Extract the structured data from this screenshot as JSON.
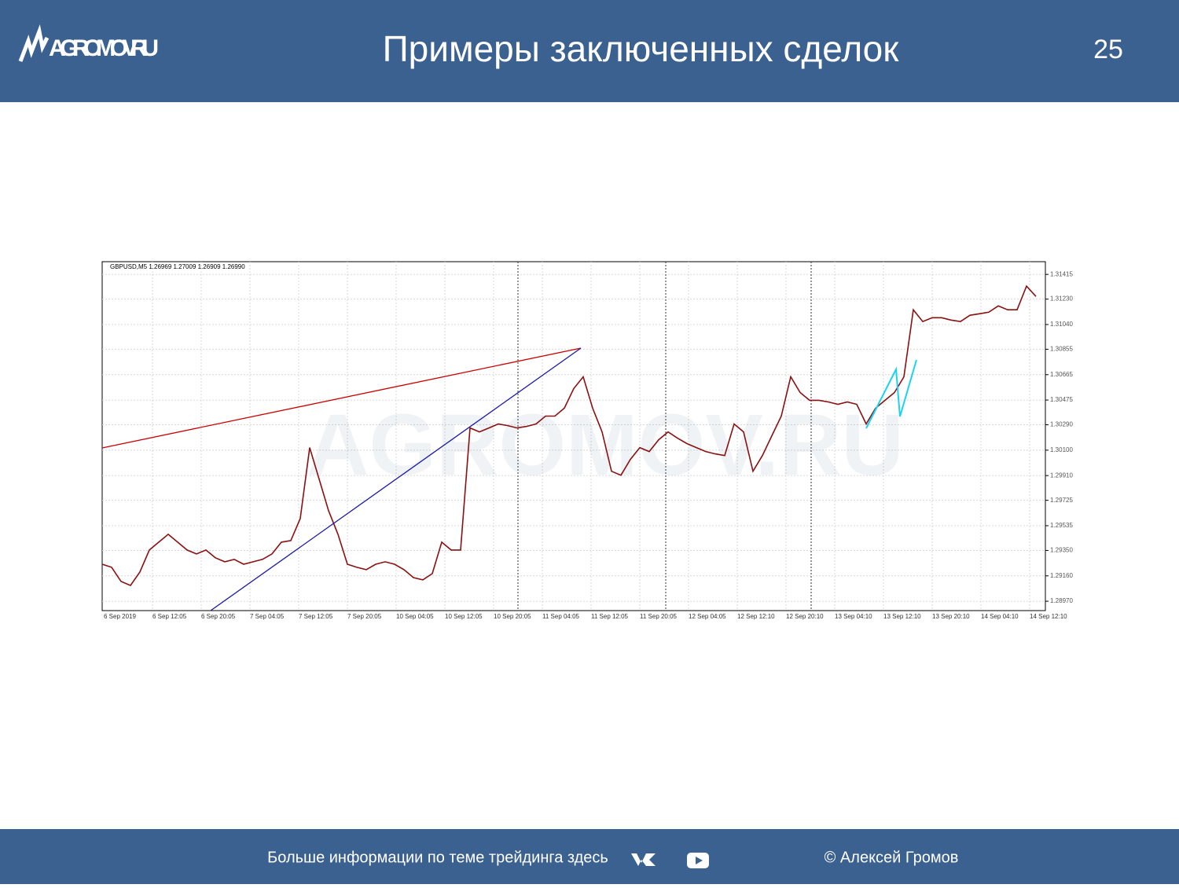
{
  "header": {
    "logo": "AGROMOV.RU",
    "title": "Примеры заключенных сделок",
    "page_number": "25"
  },
  "chart_data": {
    "type": "line",
    "legend_text": "GBPUSD,M5  1.26969 1.27009 1.26909 1.26990",
    "watermark": "AGROMOV.RU",
    "color": "#8b1010",
    "values": [
      1.29247,
      1.29224,
      1.29118,
      1.29088,
      1.29189,
      1.29353,
      1.29412,
      1.29471,
      1.29412,
      1.29353,
      1.29324,
      1.29353,
      1.29295,
      1.29265,
      1.29283,
      1.29247,
      1.29265,
      1.29283,
      1.29324,
      1.29412,
      1.29424,
      1.29589,
      1.30119,
      1.29884,
      1.29648,
      1.29471,
      1.29247,
      1.29224,
      1.29206,
      1.29247,
      1.29265,
      1.29247,
      1.29206,
      1.29147,
      1.2913,
      1.29177,
      1.29412,
      1.29353,
      1.29353,
      1.30266,
      1.30237,
      1.30266,
      1.30296,
      1.30284,
      1.30266,
      1.30278,
      1.30296,
      1.30355,
      1.30355,
      1.30414,
      1.30561,
      1.30649,
      1.30414,
      1.30237,
      1.29942,
      1.29913,
      1.30031,
      1.30119,
      1.3009,
      1.30178,
      1.30237,
      1.3019,
      1.30149,
      1.30119,
      1.3009,
      1.30072,
      1.3006,
      1.30296,
      1.30237,
      1.29942,
      1.3006,
      1.30208,
      1.30355,
      1.30649,
      1.30531,
      1.30473,
      1.30473,
      1.30461,
      1.30443,
      1.30461,
      1.30443,
      1.30296,
      1.30414,
      1.30473,
      1.30531,
      1.30649,
      1.3115,
      1.31062,
      1.31091,
      1.31091,
      1.31073,
      1.31062,
      1.31109,
      1.3112,
      1.31132,
      1.31179,
      1.3115,
      1.3115,
      1.31327,
      1.3125
    ],
    "ylim": [
      1.289,
      1.3151
    ],
    "yticks": [
      {
        "value": 1.31415,
        "label": "1.31415"
      },
      {
        "value": 1.3123,
        "label": "1.31230"
      },
      {
        "value": 1.3104,
        "label": "1.31040"
      },
      {
        "value": 1.30855,
        "label": "1.30855"
      },
      {
        "value": 1.30665,
        "label": "1.30665"
      },
      {
        "value": 1.30475,
        "label": "1.30475"
      },
      {
        "value": 1.3029,
        "label": "1.30290"
      },
      {
        "value": 1.301,
        "label": "1.30100"
      },
      {
        "value": 1.2991,
        "label": "1.29910"
      },
      {
        "value": 1.29725,
        "label": "1.29725"
      },
      {
        "value": 1.29535,
        "label": "1.29535"
      },
      {
        "value": 1.2935,
        "label": "1.29350"
      },
      {
        "value": 1.2916,
        "label": "1.29160"
      },
      {
        "value": 1.2897,
        "label": "1.28970"
      }
    ],
    "time_labels": [
      "6 Sep 2019",
      "6 Sep 12:05",
      "6 Sep 20:05",
      "7 Sep 04:05",
      "7 Sep 12:05",
      "7 Sep 20:05",
      "10 Sep 04:05",
      "10 Sep 12:05",
      "10 Sep 20:05",
      "11 Sep 04:05",
      "11 Sep 12:05",
      "11 Sep 20:05",
      "12 Sep 04:05",
      "12 Sep 12:10",
      "12 Sep 20:10",
      "13 Sep 04:10",
      "13 Sep 12:10",
      "13 Sep 20:10",
      "14 Sep 04:10",
      "14 Sep 12:10"
    ],
    "grid": true
  },
  "footer": {
    "text": "Больше информации по теме трейдинга здесь",
    "author": "© Алексей Громов"
  }
}
